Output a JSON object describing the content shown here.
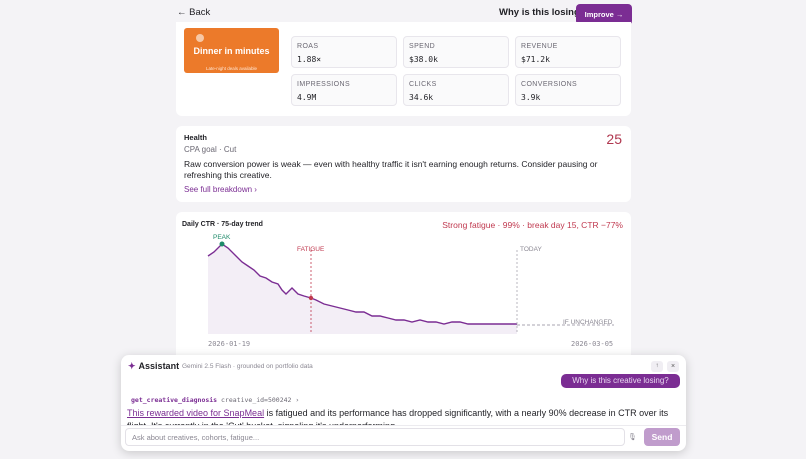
{
  "topbar": {
    "back_label": "← Back",
    "why_label": "Why is this losing?",
    "improve_label": "Improve →"
  },
  "creative": {
    "title": "Dinner in minutes",
    "subtitle": "Late-night deals available"
  },
  "metrics": [
    {
      "label": "ROAS",
      "value": "1.88×"
    },
    {
      "label": "SPEND",
      "value": "$38.0k"
    },
    {
      "label": "REVENUE",
      "value": "$71.2k"
    },
    {
      "label": "IMPRESSIONS",
      "value": "4.9M"
    },
    {
      "label": "CLICKS",
      "value": "34.6k"
    },
    {
      "label": "CONVERSIONS",
      "value": "3.9k"
    }
  ],
  "health": {
    "title": "Health",
    "subtitle": "CPA goal · Cut",
    "score": "25",
    "body": "Raw conversion power is weak — even with healthy traffic it isn't earning enough returns. Consider pausing or refreshing this creative.",
    "link": "See full breakdown ›"
  },
  "trend": {
    "title": "Daily CTR · 75-day trend",
    "status": "Strong fatigue · 99% · break day 15, CTR −77%",
    "peak_label": "PEAK",
    "fatigue_label": "FATIGUE",
    "today_label": "TODAY",
    "unchanged_label": "IF UNCHANGED",
    "start_date": "2026-01-19",
    "end_date": "2026-03-05",
    "colors": {
      "line": "#7b2d93",
      "fill": "#f3eef6",
      "fatigue": "#c0394f",
      "peak": "#1f8a6a"
    }
  },
  "assistant": {
    "title": "Assistant",
    "meta": "Gemini 2.5 Flash · grounded on portfolio data",
    "pin_icon": "↑",
    "close_icon": "×",
    "user_message": "Why is this creative losing?",
    "tool_name": "get_creative_diagnosis",
    "tool_args": "creative_id=500242 ›",
    "answer_link": "This rewarded video for SnapMeal",
    "answer_text": " is fatigued and its performance has dropped significantly, with a nearly 90% decrease in CTR over its flight. It's currently in the 'Cut' bucket, signaling it's underperforming.",
    "input_placeholder": "Ask about creatives, cohorts, fatigue...",
    "send_label": "Send"
  }
}
